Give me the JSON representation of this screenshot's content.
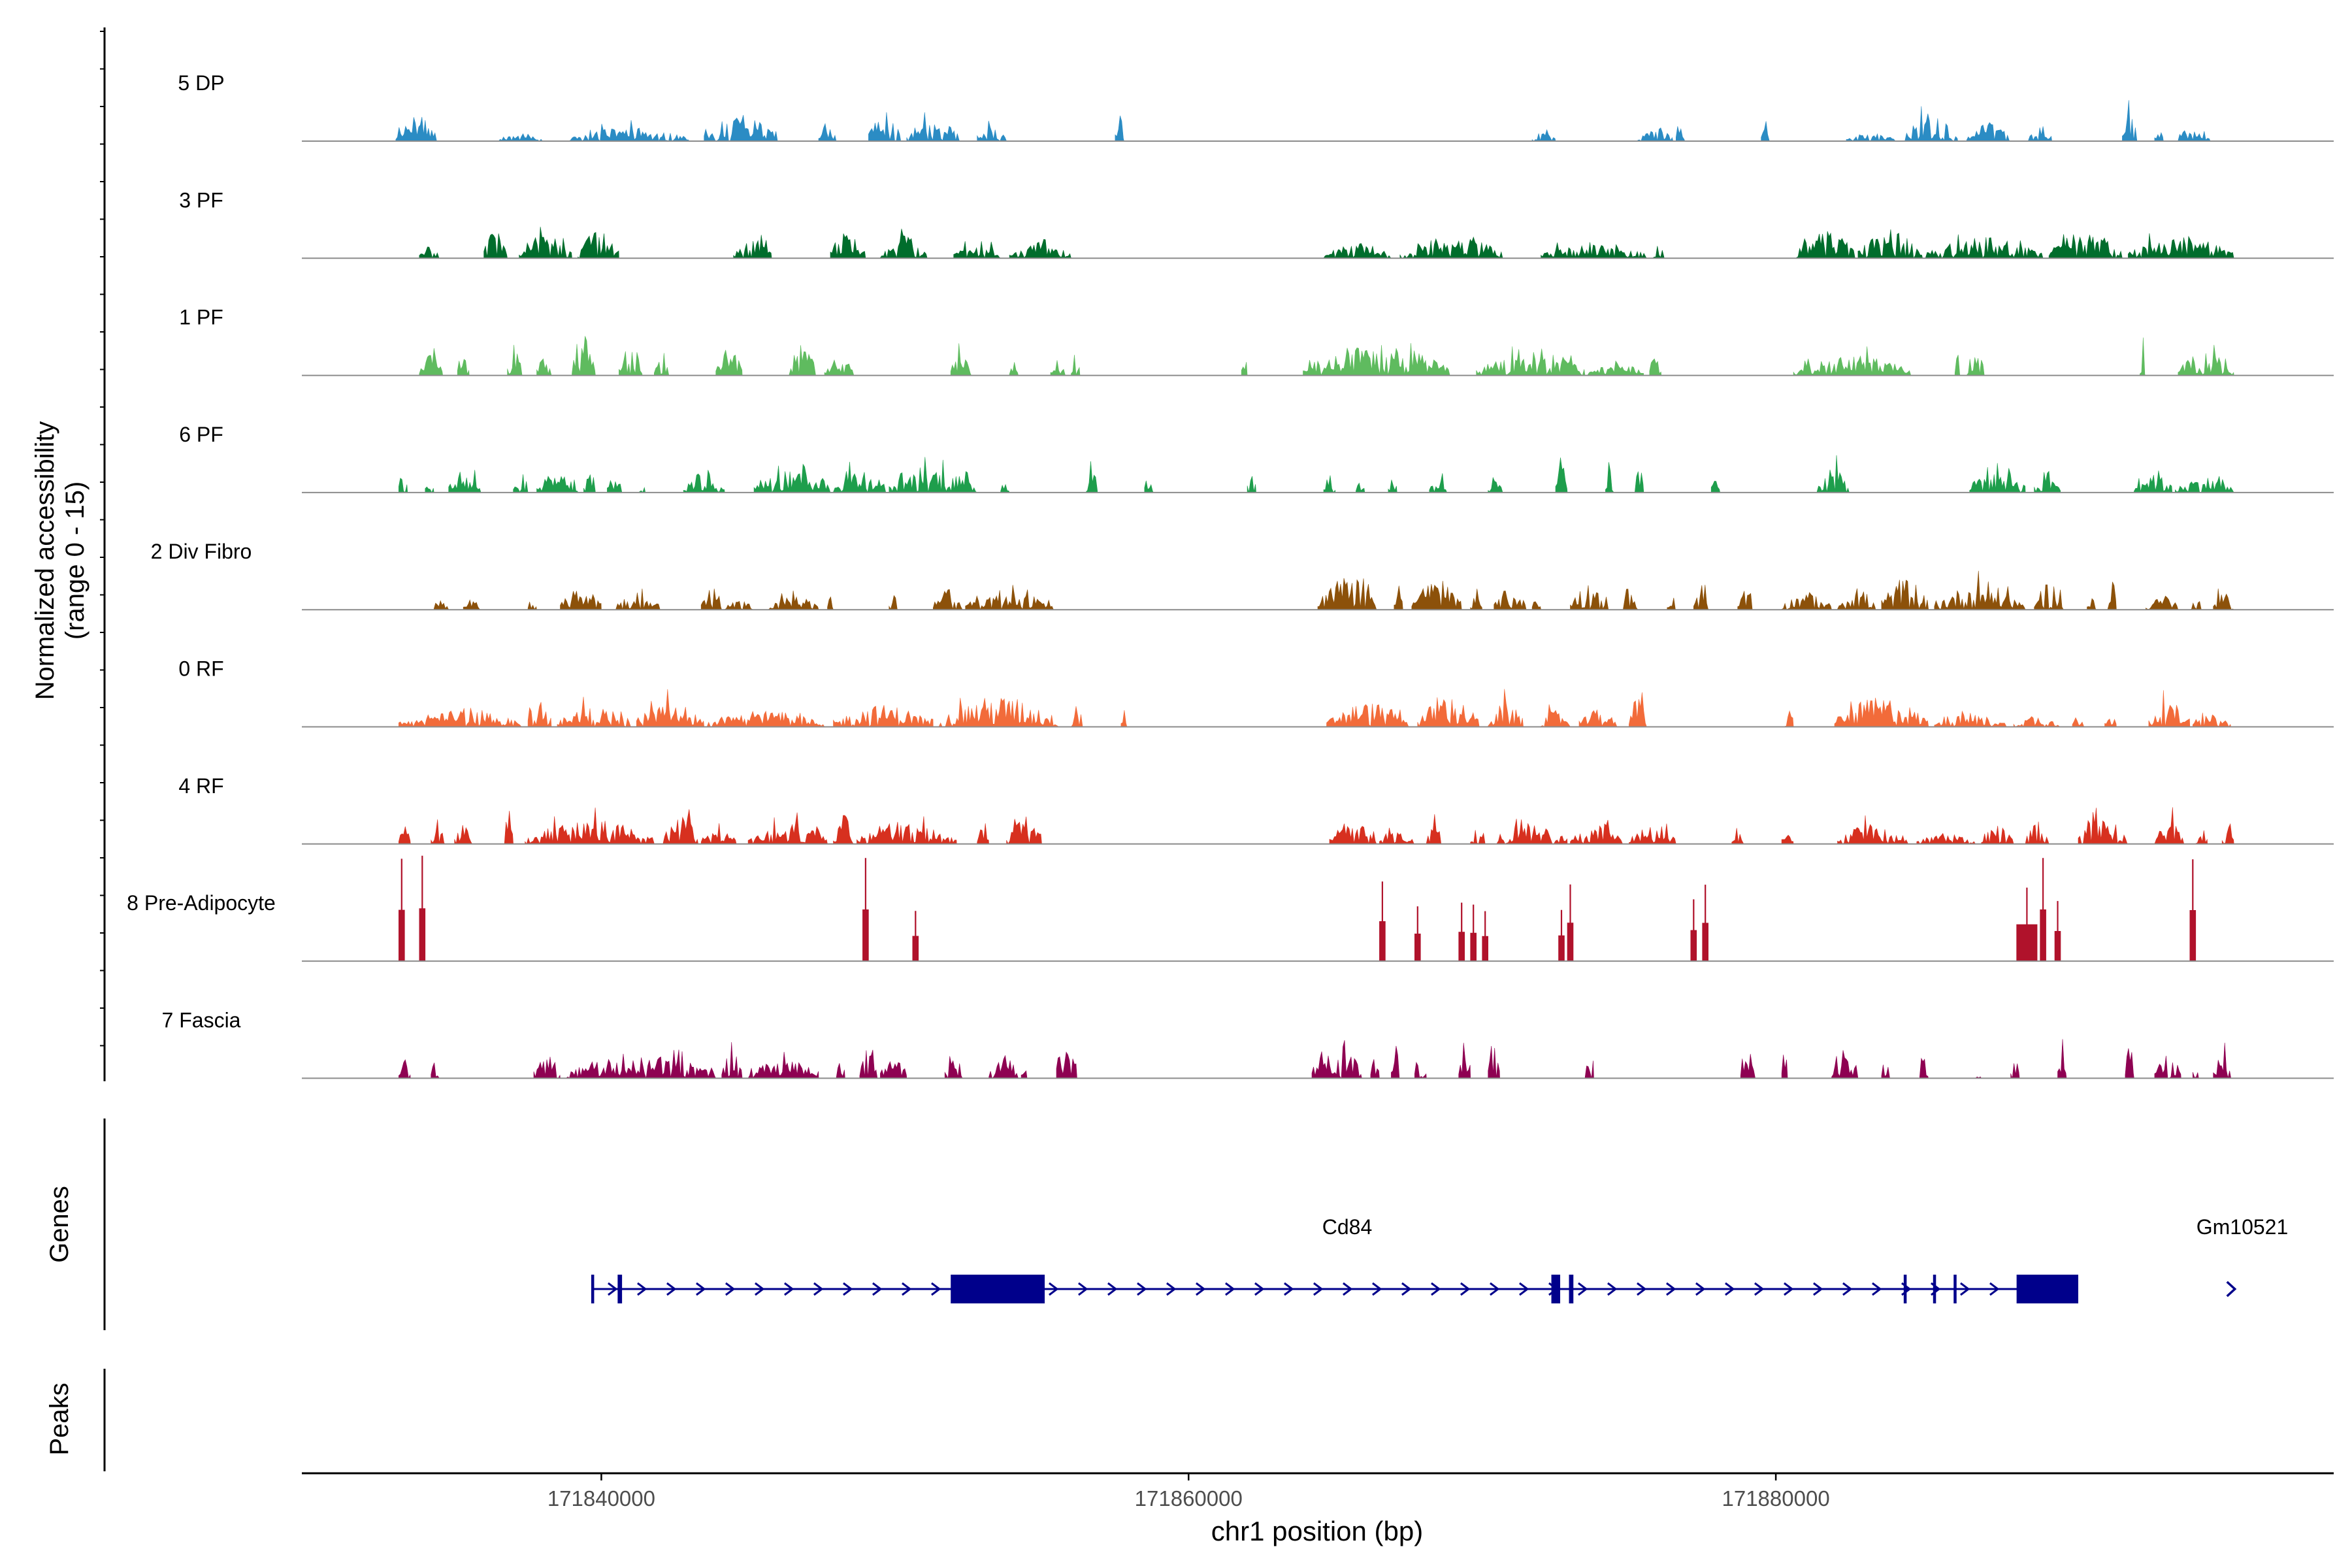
{
  "chart_data": {
    "type": "area",
    "title": "",
    "ylabel_line1": "Normalized accessibility",
    "ylabel_line2": "(range 0 - 15)",
    "ylim": [
      0,
      15
    ],
    "xlabel": "chr1 position (bp)",
    "xlim": [
      171829800,
      171899000
    ],
    "xticks": [
      {
        "value": 171840000,
        "label": "171840000"
      },
      {
        "value": 171860000,
        "label": "171860000"
      },
      {
        "value": 171880000,
        "label": "171880000"
      }
    ],
    "genes_panel_label": "Genes",
    "peaks_panel_label": "Peaks",
    "tracks": [
      {
        "name": "5 DP",
        "color": "#2b8cc4",
        "style": "sparse",
        "scale": 0.28,
        "regions": [
          [
            171833000,
            171834400
          ],
          [
            171836500,
            171838000
          ],
          [
            171838900,
            171843000
          ],
          [
            171843500,
            171846000
          ],
          [
            171847400,
            171848000
          ],
          [
            171849100,
            171850200
          ],
          [
            171850400,
            171852200
          ],
          [
            171852800,
            171853800
          ],
          [
            171857500,
            171857800
          ],
          [
            171871700,
            171872500
          ],
          [
            171875300,
            171876500
          ],
          [
            171876600,
            171876900
          ],
          [
            171879500,
            171879800
          ],
          [
            171882400,
            171884100
          ],
          [
            171884400,
            171886200
          ],
          [
            171886500,
            171888000
          ],
          [
            171888600,
            171889400
          ],
          [
            171891800,
            171892300
          ],
          [
            171892900,
            171893200
          ],
          [
            171893700,
            171894800
          ]
        ]
      },
      {
        "name": "3 PF",
        "color": "#006d2c",
        "style": "dense",
        "scale": 0.3,
        "regions": [
          [
            171833800,
            171834500
          ],
          [
            171836000,
            171836800
          ],
          [
            171837200,
            171839000
          ],
          [
            171839200,
            171840600
          ],
          [
            171844500,
            171845800
          ],
          [
            171847800,
            171849000
          ],
          [
            171849500,
            171851100
          ],
          [
            171852000,
            171853600
          ],
          [
            171853900,
            171856000
          ],
          [
            171864600,
            171866900
          ],
          [
            171867200,
            171870700
          ],
          [
            171872000,
            171875600
          ],
          [
            171875800,
            171876200
          ],
          [
            171880700,
            171882700
          ],
          [
            171882800,
            171885000
          ],
          [
            171885100,
            171889100
          ],
          [
            171889300,
            171891800
          ],
          [
            171892000,
            171895600
          ]
        ]
      },
      {
        "name": "1 PF",
        "color": "#5fbb5f",
        "style": "dense",
        "scale": 0.3,
        "regions": [
          [
            171833800,
            171834600
          ],
          [
            171835100,
            171835500
          ],
          [
            171836800,
            171837300
          ],
          [
            171837800,
            171838300
          ],
          [
            171839000,
            171839800
          ],
          [
            171840600,
            171841400
          ],
          [
            171841800,
            171842300
          ],
          [
            171843900,
            171844800
          ],
          [
            171846400,
            171847300
          ],
          [
            171847600,
            171848600
          ],
          [
            171851900,
            171852600
          ],
          [
            171853900,
            171854200
          ],
          [
            171855300,
            171855800
          ],
          [
            171856000,
            171856300
          ],
          [
            171861800,
            171862000
          ],
          [
            171863900,
            171868900
          ],
          [
            171869800,
            171873500
          ],
          [
            171873600,
            171875500
          ],
          [
            171875700,
            171876100
          ],
          [
            171880600,
            171884600
          ],
          [
            171886100,
            171886300
          ],
          [
            171886500,
            171887100
          ],
          [
            171892400,
            171892600
          ],
          [
            171893700,
            171895600
          ]
        ]
      },
      {
        "name": "6 PF",
        "color": "#1e9e4c",
        "style": "dense",
        "scale": 0.32,
        "regions": [
          [
            171833100,
            171833400
          ],
          [
            171834000,
            171834300
          ],
          [
            171834800,
            171835900
          ],
          [
            171837000,
            171837500
          ],
          [
            171837800,
            171839200
          ],
          [
            171839400,
            171839800
          ],
          [
            171840200,
            171840700
          ],
          [
            171841300,
            171841500
          ],
          [
            171842800,
            171844200
          ],
          [
            171845200,
            171847800
          ],
          [
            171847900,
            171849700
          ],
          [
            171849800,
            171852800
          ],
          [
            171853600,
            171853900
          ],
          [
            171856500,
            171856900
          ],
          [
            171858500,
            171858800
          ],
          [
            171862000,
            171862300
          ],
          [
            171864600,
            171865000
          ],
          [
            171865700,
            171866000
          ],
          [
            171866800,
            171867100
          ],
          [
            171868200,
            171868800
          ],
          [
            171870200,
            171870700
          ],
          [
            171872500,
            171872900
          ],
          [
            171874200,
            171874500
          ],
          [
            171875200,
            171875500
          ],
          [
            171877800,
            171878100
          ],
          [
            171881400,
            171882500
          ],
          [
            171886600,
            171888500
          ],
          [
            171888800,
            171889700
          ],
          [
            171892200,
            171893500
          ],
          [
            171893600,
            171895600
          ]
        ]
      },
      {
        "name": "2 Div Fibro",
        "color": "#8c510a",
        "style": "sparse",
        "scale": 0.32,
        "regions": [
          [
            171834300,
            171834800
          ],
          [
            171835300,
            171835900
          ],
          [
            171837500,
            171837800
          ],
          [
            171838600,
            171840000
          ],
          [
            171840500,
            171842000
          ],
          [
            171843400,
            171844100
          ],
          [
            171844200,
            171845200
          ],
          [
            171845700,
            171847400
          ],
          [
            171847700,
            171847900
          ],
          [
            171849800,
            171850100
          ],
          [
            171851300,
            171852300
          ],
          [
            171852400,
            171855400
          ],
          [
            171864400,
            171866400
          ],
          [
            171867000,
            171867300
          ],
          [
            171867600,
            171869300
          ],
          [
            171869600,
            171870000
          ],
          [
            171870400,
            171871500
          ],
          [
            171871700,
            171872000
          ],
          [
            171873000,
            171874300
          ],
          [
            171874800,
            171875300
          ],
          [
            171876300,
            171876600
          ],
          [
            171877200,
            171877700
          ],
          [
            171878700,
            171879200
          ],
          [
            171880200,
            171881900
          ],
          [
            171882100,
            171883400
          ],
          [
            171883600,
            171885200
          ],
          [
            171885400,
            171888500
          ],
          [
            171888800,
            171889800
          ],
          [
            171890600,
            171890900
          ],
          [
            171891300,
            171891600
          ],
          [
            171892600,
            171893700
          ],
          [
            171894100,
            171894500
          ],
          [
            171894900,
            171895600
          ]
        ]
      },
      {
        "name": "0 RF",
        "color": "#f26b3a",
        "style": "dense",
        "scale": 0.3,
        "regions": [
          [
            171833100,
            171837300
          ],
          [
            171837500,
            171838300
          ],
          [
            171838500,
            171841000
          ],
          [
            171841200,
            171843500
          ],
          [
            171843600,
            171847600
          ],
          [
            171847900,
            171851300
          ],
          [
            171851500,
            171855600
          ],
          [
            171856000,
            171856400
          ],
          [
            171857700,
            171857900
          ],
          [
            171864700,
            171867500
          ],
          [
            171867800,
            171869900
          ],
          [
            171870200,
            171871400
          ],
          [
            171872000,
            171873000
          ],
          [
            171873300,
            171874600
          ],
          [
            171875000,
            171875600
          ],
          [
            171880300,
            171880600
          ],
          [
            171882000,
            171885200
          ],
          [
            171885400,
            171887900
          ],
          [
            171888100,
            171889700
          ],
          [
            171890100,
            171890500
          ],
          [
            171891200,
            171891600
          ],
          [
            171892700,
            171894100
          ],
          [
            171894200,
            171895500
          ]
        ]
      },
      {
        "name": "4 RF",
        "color": "#d7301f",
        "style": "dense",
        "scale": 0.28,
        "regions": [
          [
            171833100,
            171833500
          ],
          [
            171834200,
            171834700
          ],
          [
            171835000,
            171835600
          ],
          [
            171836700,
            171837000
          ],
          [
            171837400,
            171841800
          ],
          [
            171842100,
            171843300
          ],
          [
            171843400,
            171844600
          ],
          [
            171845000,
            171847700
          ],
          [
            171847900,
            171848600
          ],
          [
            171848700,
            171852100
          ],
          [
            171852800,
            171853200
          ],
          [
            171853800,
            171855000
          ],
          [
            171864800,
            171866400
          ],
          [
            171866500,
            171867700
          ],
          [
            171868100,
            171868600
          ],
          [
            171869600,
            171870100
          ],
          [
            171870500,
            171872900
          ],
          [
            171873000,
            171874800
          ],
          [
            171875000,
            171876600
          ],
          [
            171878500,
            171878900
          ],
          [
            171880200,
            171880600
          ],
          [
            171882100,
            171884500
          ],
          [
            171884800,
            171886800
          ],
          [
            171887000,
            171888100
          ],
          [
            171888500,
            171889300
          ],
          [
            171890300,
            171892000
          ],
          [
            171892900,
            171893900
          ],
          [
            171894300,
            171894700
          ],
          [
            171895200,
            171895600
          ]
        ]
      },
      {
        "name": "8 Pre-Adipocyte",
        "color": "#b0122b",
        "style": "spikes",
        "scale": 1,
        "regions": [
          [
            171833100,
            171833300
          ],
          [
            171833800,
            171834000
          ],
          [
            171848900,
            171849100
          ],
          [
            171850600,
            171850800
          ],
          [
            171866500,
            171866700
          ],
          [
            171867700,
            171867900
          ],
          [
            171869200,
            171869400
          ],
          [
            171869600,
            171869800
          ],
          [
            171870000,
            171870200
          ],
          [
            171872600,
            171872800
          ],
          [
            171872900,
            171873100
          ],
          [
            171877100,
            171877300
          ],
          [
            171877500,
            171877700
          ],
          [
            171888200,
            171888900
          ],
          [
            171889000,
            171889200
          ],
          [
            171889500,
            171889700
          ],
          [
            171894100,
            171894300
          ]
        ]
      },
      {
        "name": "7 Fascia",
        "color": "#8e0152",
        "style": "dense",
        "scale": 0.42,
        "regions": [
          [
            171833100,
            171833500
          ],
          [
            171834200,
            171834500
          ],
          [
            171837700,
            171838600
          ],
          [
            171838800,
            171843900
          ],
          [
            171844100,
            171844800
          ],
          [
            171845000,
            171847400
          ],
          [
            171848000,
            171848300
          ],
          [
            171848800,
            171849400
          ],
          [
            171849500,
            171850400
          ],
          [
            171851700,
            171852300
          ],
          [
            171853200,
            171854200
          ],
          [
            171854300,
            171854500
          ],
          [
            171855500,
            171856200
          ],
          [
            171864200,
            171865900
          ],
          [
            171866200,
            171866500
          ],
          [
            171866900,
            171867200
          ],
          [
            171867700,
            171868100
          ],
          [
            171869200,
            171869600
          ],
          [
            171870200,
            171870600
          ],
          [
            171873500,
            171873800
          ],
          [
            171878800,
            171879300
          ],
          [
            171880200,
            171880400
          ],
          [
            171881900,
            171882800
          ],
          [
            171883600,
            171883900
          ],
          [
            171884900,
            171885200
          ],
          [
            171886800,
            171887000
          ],
          [
            171888000,
            171888300
          ],
          [
            171889600,
            171889900
          ],
          [
            171891900,
            171892200
          ],
          [
            171892900,
            171893800
          ],
          [
            171894200,
            171894400
          ],
          [
            171894900,
            171895500
          ]
        ]
      }
    ],
    "genes": [
      {
        "name": "Cd84",
        "start": 171839700,
        "end": 171890300,
        "strand": "+",
        "exons": [
          [
            171839700,
            171839800
          ],
          [
            171840600,
            171840750
          ],
          [
            171851900,
            171855100
          ],
          [
            171872400,
            171872700
          ],
          [
            171873000,
            171873150
          ],
          [
            171884400,
            171884500
          ],
          [
            171885400,
            171885500
          ],
          [
            171886100,
            171886200
          ],
          [
            171888200,
            171890300
          ]
        ],
        "thick": [
          [
            171851900,
            171855100
          ],
          [
            171888200,
            171890300
          ]
        ]
      },
      {
        "name": "Gm10521",
        "start": 171895400,
        "end": 171895600,
        "strand": "+",
        "exons": [],
        "thick": []
      }
    ]
  },
  "colors": {
    "axis": "#000000",
    "baseline": "#8c8c8c",
    "gene": "#00008b",
    "tick_text": "#4d4d4d"
  }
}
